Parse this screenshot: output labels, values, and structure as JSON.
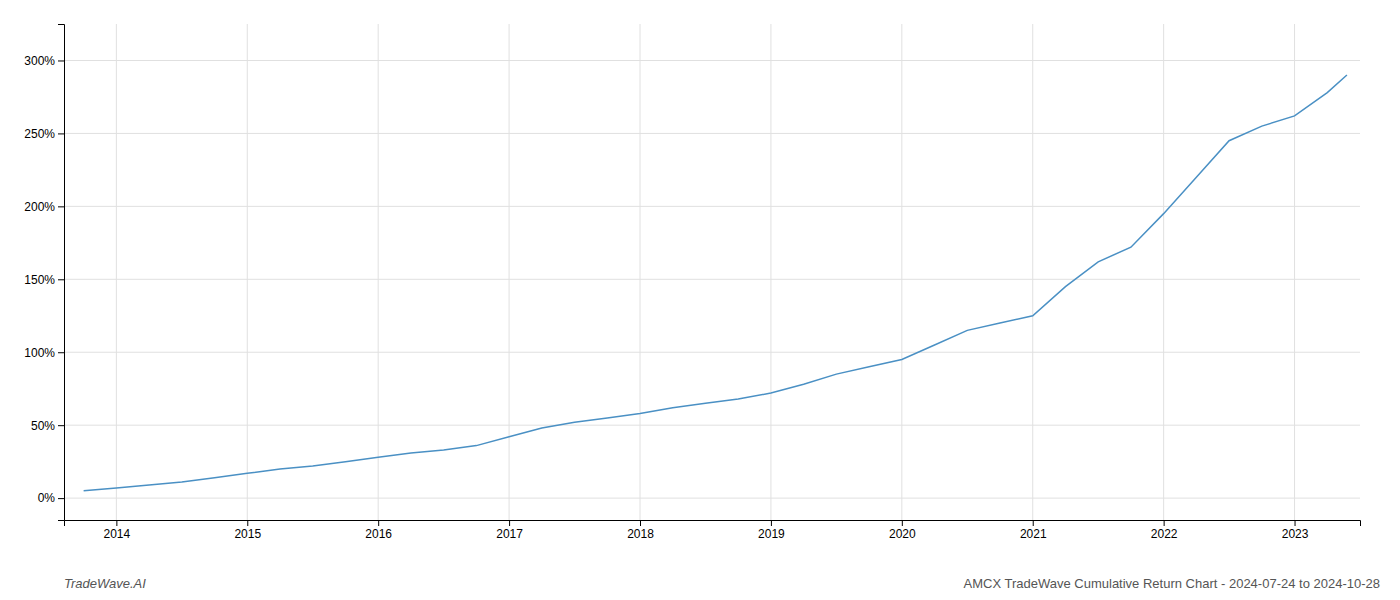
{
  "chart_data": {
    "type": "line",
    "x": [
      2013.75,
      2014.0,
      2014.25,
      2014.5,
      2014.75,
      2015.0,
      2015.25,
      2015.5,
      2015.75,
      2016.0,
      2016.25,
      2016.5,
      2016.75,
      2017.0,
      2017.25,
      2017.5,
      2017.75,
      2018.0,
      2018.25,
      2018.5,
      2018.75,
      2019.0,
      2019.25,
      2019.5,
      2019.75,
      2020.0,
      2020.25,
      2020.5,
      2020.75,
      2021.0,
      2021.25,
      2021.5,
      2021.75,
      2022.0,
      2022.25,
      2022.5,
      2022.75,
      2023.0,
      2023.25,
      2023.4
    ],
    "values": [
      5,
      7,
      9,
      11,
      14,
      17,
      20,
      22,
      25,
      28,
      31,
      33,
      36,
      42,
      48,
      52,
      55,
      58,
      62,
      65,
      68,
      72,
      78,
      85,
      90,
      95,
      105,
      115,
      120,
      125,
      145,
      162,
      172,
      195,
      220,
      245,
      255,
      262,
      278,
      290
    ],
    "color": "#4a90c4",
    "xlim": [
      2013.6,
      2023.5
    ],
    "ylim": [
      -15,
      325
    ],
    "xticks": [
      2014,
      2015,
      2016,
      2017,
      2018,
      2019,
      2020,
      2021,
      2022,
      2023
    ],
    "yticks": [
      {
        "value": 0,
        "label": "0%"
      },
      {
        "value": 50,
        "label": "50%"
      },
      {
        "value": 100,
        "label": "100%"
      },
      {
        "value": 150,
        "label": "150%"
      },
      {
        "value": 200,
        "label": "200%"
      },
      {
        "value": 250,
        "label": "250%"
      },
      {
        "value": 300,
        "label": "300%"
      }
    ],
    "grid": true,
    "annotations": [
      "TradeWave.AI",
      "AMCX TradeWave Cumulative Return Chart - 2024-07-24 to 2024-10-28"
    ]
  }
}
